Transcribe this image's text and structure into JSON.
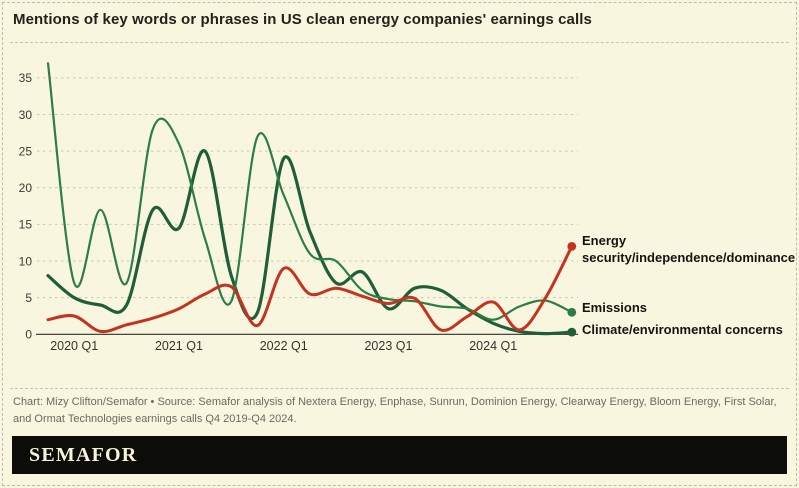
{
  "header": {
    "title": "Mentions of key words or phrases in US clean energy companies' earnings calls"
  },
  "chart_data": {
    "type": "line",
    "title": "Mentions of key words or phrases in US clean energy companies' earnings calls",
    "xlabel": "",
    "ylabel": "",
    "x_range": [
      "2019 Q4",
      "2024 Q4"
    ],
    "ylim": [
      0,
      37.5
    ],
    "yticks": [
      0,
      5,
      10,
      15,
      20,
      25,
      30,
      35
    ],
    "grid": "horizontal-dashed",
    "legend_position": "right-end-of-line",
    "categories": [
      "2019 Q4",
      "2020 Q1",
      "2020 Q2",
      "2020 Q3",
      "2020 Q4",
      "2021 Q1",
      "2021 Q2",
      "2021 Q3",
      "2021 Q4",
      "2022 Q1",
      "2022 Q2",
      "2022 Q3",
      "2022 Q4",
      "2023 Q1",
      "2023 Q2",
      "2023 Q3",
      "2023 Q4",
      "2024 Q1",
      "2024 Q2",
      "2024 Q3",
      "2024 Q4"
    ],
    "x_ticks": [
      {
        "label": "2020 Q1",
        "index": 1
      },
      {
        "label": "2021 Q1",
        "index": 5
      },
      {
        "label": "2022 Q1",
        "index": 9
      },
      {
        "label": "2023 Q1",
        "index": 13
      },
      {
        "label": "2024 Q1",
        "index": 17
      }
    ],
    "series": [
      {
        "name": "Climate/environmental concerns",
        "color": "#1f5f38",
        "stroke_width": 3.2,
        "values": [
          8,
          5,
          4,
          4,
          17,
          14.5,
          25,
          8,
          3,
          24,
          14,
          7,
          8.5,
          3.5,
          6.3,
          6,
          3.5,
          1.5,
          0.4,
          0.1,
          0.3
        ]
      },
      {
        "name": "Emissions",
        "color": "#2e7d45",
        "stroke_width": 2.2,
        "values": [
          37,
          7,
          17,
          7,
          28,
          26,
          13,
          4.5,
          27,
          19,
          11,
          10,
          6,
          4.8,
          4.5,
          3.8,
          3.5,
          2,
          3.8,
          4.6,
          3
        ]
      },
      {
        "name": "Energy security/independence/dominance",
        "color": "#c23320",
        "stroke_width": 3,
        "values": [
          2,
          2.5,
          0.4,
          1.3,
          2.2,
          3.5,
          5.5,
          6.5,
          1.2,
          9,
          5.5,
          6.3,
          5.2,
          4.2,
          4.9,
          0.6,
          2.4,
          4.4,
          0.6,
          5,
          12
        ]
      }
    ],
    "legend_labels": {
      "energy": "Energy security/independence/dominance",
      "emissions": "Emissions",
      "climate": "Climate/environmental concerns"
    }
  },
  "footer": {
    "caption": "Chart: Mizy Clifton/Semafor • Source: Semafor analysis of Nextera Energy, Enphase, Sunrun, Dominion Energy, Clearway Energy, Bloom Energy, First Solar, and Ormat Technologies earnings calls Q4 2019-Q4 2024."
  },
  "logo": {
    "text": "SEMAFOR"
  }
}
